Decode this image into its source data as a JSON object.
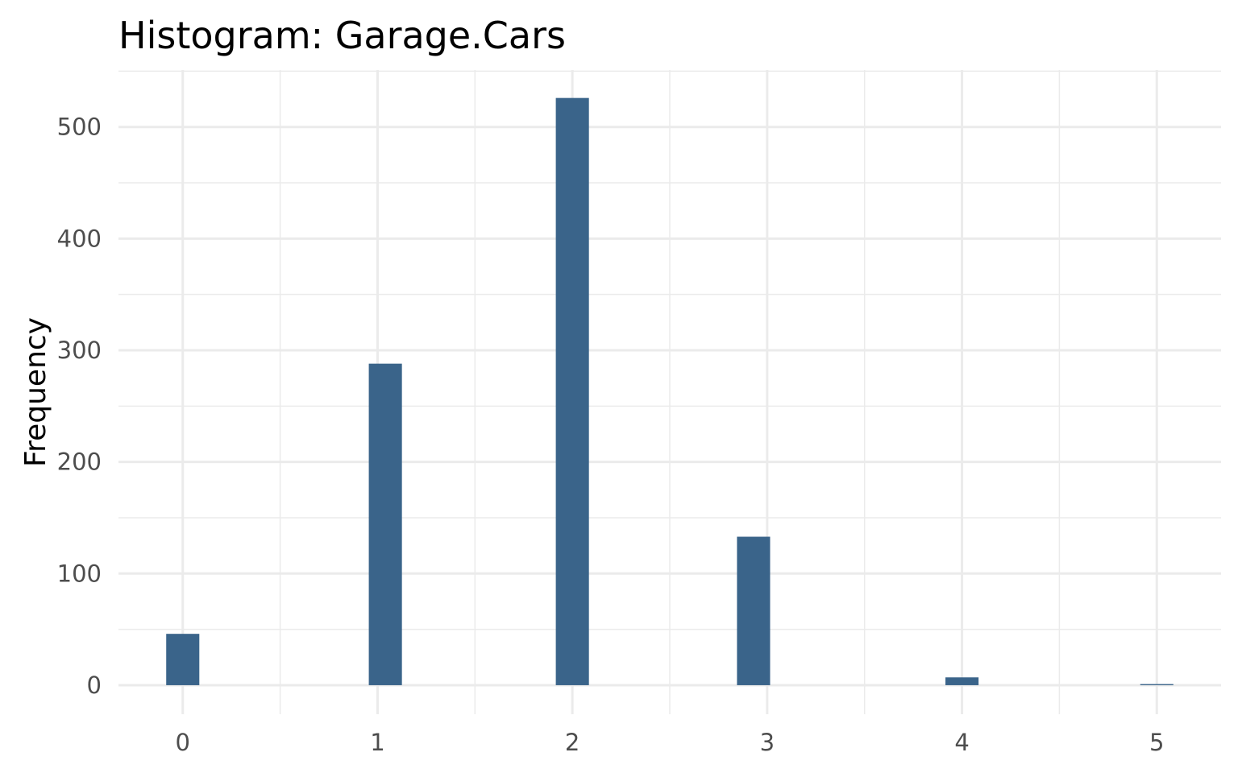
{
  "chart_data": {
    "type": "bar",
    "title": "Histogram:  Garage.Cars",
    "xlabel": "",
    "ylabel": "Frequency",
    "x": [
      0,
      1,
      2,
      3,
      4,
      5
    ],
    "x_tick_labels": [
      "0",
      "1",
      "2",
      "3",
      "4",
      "5"
    ],
    "values": [
      46,
      288,
      526,
      133,
      7,
      1
    ],
    "xlim": [
      -0.33,
      5.33
    ],
    "ylim": [
      -26,
      551
    ],
    "y_ticks": [
      0,
      100,
      200,
      300,
      400,
      500
    ],
    "y_tick_labels": [
      "0",
      "100",
      "200",
      "300",
      "400",
      "500"
    ],
    "bar_color": "#3a648a",
    "grid": true,
    "legend": "none"
  }
}
